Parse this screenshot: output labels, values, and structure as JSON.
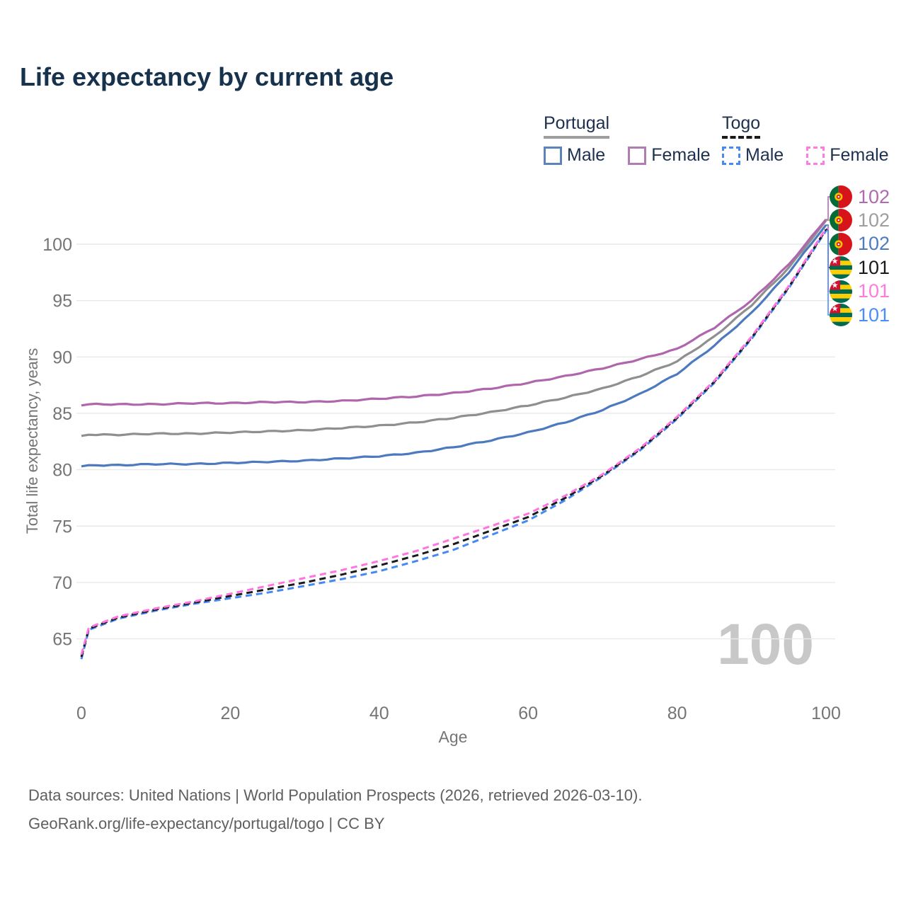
{
  "title": "Life expectancy by current age",
  "legend": {
    "groups": [
      {
        "label": "Portugal",
        "underline_style": "solid",
        "underline_color": "#9e9e9e",
        "items": [
          {
            "label": "Male",
            "color": "#5b84bb",
            "dashed": false
          },
          {
            "label": "Female",
            "color": "#b17cb2",
            "dashed": false
          }
        ]
      },
      {
        "label": "Togo",
        "underline_style": "dashed",
        "underline_color": "#1a1a1a",
        "items": [
          {
            "label": "Male",
            "color": "#4589f5",
            "dashed": true
          },
          {
            "label": "Female",
            "color": "#ff7be0",
            "dashed": true
          }
        ]
      }
    ]
  },
  "chart_data": {
    "type": "line",
    "title": "Life expectancy by current age",
    "xlabel": "Age",
    "ylabel": "Total life expectancy, years",
    "xlim": [
      0,
      100
    ],
    "ylim": [
      62,
      103
    ],
    "xticks": [
      0,
      20,
      40,
      60,
      80,
      100
    ],
    "yticks": [
      65,
      70,
      75,
      80,
      85,
      90,
      95,
      100
    ],
    "grid": "horizontal",
    "legend_position": "top-right",
    "watermark_age_counter": "100",
    "x": [
      0,
      1,
      5,
      10,
      15,
      20,
      25,
      30,
      35,
      40,
      45,
      50,
      55,
      60,
      65,
      70,
      75,
      80,
      85,
      90,
      95,
      100
    ],
    "series": [
      {
        "name": "Portugal Male",
        "country": "Portugal",
        "sex": "Male",
        "color": "#4d7abe",
        "style": "solid",
        "values": [
          80.3,
          80.4,
          80.4,
          80.5,
          80.5,
          80.6,
          80.7,
          80.8,
          81.0,
          81.2,
          81.5,
          82.0,
          82.6,
          83.3,
          84.2,
          85.3,
          86.7,
          88.5,
          91.0,
          93.9,
          97.5,
          101.7
        ],
        "end_label": "102"
      },
      {
        "name": "Portugal Average",
        "country": "Portugal",
        "sex": "Both",
        "color": "#8f8f8f",
        "style": "solid",
        "values": [
          83.0,
          83.1,
          83.1,
          83.2,
          83.2,
          83.3,
          83.4,
          83.5,
          83.7,
          83.9,
          84.2,
          84.6,
          85.1,
          85.7,
          86.4,
          87.2,
          88.3,
          89.6,
          91.8,
          94.6,
          97.9,
          102.1
        ],
        "end_label": "102"
      },
      {
        "name": "Portugal Female",
        "country": "Portugal",
        "sex": "Female",
        "color": "#b066ad",
        "style": "solid",
        "values": [
          85.7,
          85.8,
          85.8,
          85.8,
          85.9,
          85.9,
          86.0,
          86.0,
          86.1,
          86.3,
          86.5,
          86.8,
          87.2,
          87.7,
          88.3,
          89.0,
          89.8,
          90.7,
          92.6,
          95.0,
          98.2,
          102.2
        ],
        "end_label": "102"
      },
      {
        "name": "Togo Male",
        "country": "Togo",
        "sex": "Male",
        "color": "#4589f5",
        "style": "dashed",
        "values": [
          63.2,
          65.8,
          66.8,
          67.5,
          68.1,
          68.6,
          69.1,
          69.7,
          70.3,
          71.0,
          71.9,
          72.9,
          74.2,
          75.5,
          77.3,
          79.4,
          81.7,
          84.5,
          87.7,
          91.6,
          96.1,
          101.2
        ],
        "end_label": "101"
      },
      {
        "name": "Togo Average",
        "country": "Togo",
        "sex": "Both",
        "color": "#1a1a1a",
        "style": "dashed",
        "values": [
          63.4,
          65.9,
          66.9,
          67.6,
          68.2,
          68.8,
          69.4,
          70.0,
          70.7,
          71.5,
          72.4,
          73.4,
          74.6,
          75.8,
          77.5,
          79.5,
          81.8,
          84.6,
          87.8,
          91.7,
          96.2,
          101.3
        ],
        "end_label": "101"
      },
      {
        "name": "Togo Female",
        "country": "Togo",
        "sex": "Female",
        "color": "#ff74e0",
        "style": "dashed",
        "values": [
          63.6,
          66.0,
          67.0,
          67.7,
          68.3,
          69.0,
          69.7,
          70.4,
          71.1,
          71.9,
          72.8,
          73.9,
          75.0,
          76.1,
          77.7,
          79.6,
          81.9,
          84.7,
          87.9,
          91.8,
          96.3,
          101.4
        ],
        "end_label": "101"
      }
    ],
    "end_labels": [
      {
        "value": "102",
        "color": "#b06ab0",
        "flag": "portugal",
        "series": "Portugal Female"
      },
      {
        "value": "102",
        "color": "#9e9e9e",
        "flag": "portugal",
        "series": "Portugal Average"
      },
      {
        "value": "102",
        "color": "#4d7cbe",
        "flag": "portugal",
        "series": "Portugal Male"
      },
      {
        "value": "101",
        "color": "#1a1a1a",
        "flag": "togo",
        "series": "Togo Average"
      },
      {
        "value": "101",
        "color": "#ff7be0",
        "flag": "togo",
        "series": "Togo Female"
      },
      {
        "value": "101",
        "color": "#4b8df8",
        "flag": "togo",
        "series": "Togo Male"
      }
    ]
  },
  "watermark": "100",
  "footer": {
    "line1": "Data sources: United Nations | World Population Prospects (2026, retrieved 2026-03-10).",
    "line2": "GeoRank.org/life-expectancy/portugal/togo | CC BY"
  }
}
